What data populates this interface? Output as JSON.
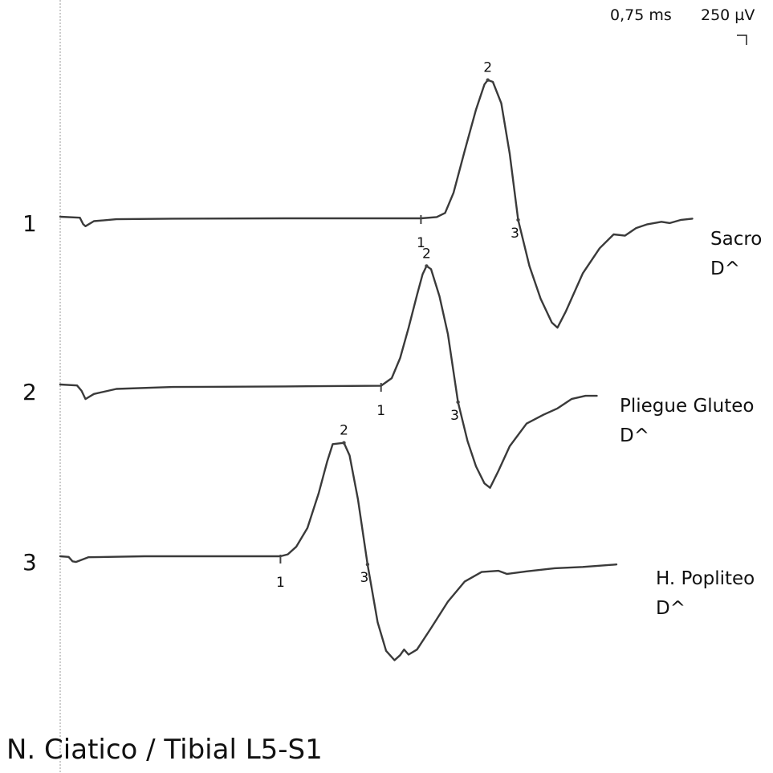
{
  "title": "N. Ciatico / Tibial L5-S1",
  "scale": {
    "time": "0,75 ms",
    "amplitude": "250 µV"
  },
  "chart_data": {
    "type": "line",
    "title": "N. Ciatico / Tibial L5-S1",
    "xlabel": "",
    "ylabel": "",
    "grid": false,
    "time_per_division_ms": 0.75,
    "amplitude_per_division_uV": 250,
    "series": [
      {
        "trace_number": "1",
        "site": "Sacro",
        "side": "D^",
        "markers": [
          {
            "label": "1",
            "x_ms": 6.42,
            "y_uV": 0
          },
          {
            "label": "2",
            "x_ms": 7.61,
            "y_uV": 2170
          },
          {
            "label": "3",
            "x_ms": 8.15,
            "y_uV": -50
          }
        ],
        "points": [
          [
            0,
            0
          ],
          [
            0.35,
            -15
          ],
          [
            0.41,
            -120
          ],
          [
            0.45,
            -150
          ],
          [
            0.6,
            -70
          ],
          [
            1.0,
            -40
          ],
          [
            2.0,
            -30
          ],
          [
            4.0,
            -25
          ],
          [
            6.42,
            -25
          ],
          [
            6.7,
            -5
          ],
          [
            6.85,
            60
          ],
          [
            7.0,
            380
          ],
          [
            7.2,
            1050
          ],
          [
            7.4,
            1700
          ],
          [
            7.55,
            2100
          ],
          [
            7.61,
            2170
          ],
          [
            7.7,
            2140
          ],
          [
            7.85,
            1800
          ],
          [
            8.0,
            1000
          ],
          [
            8.15,
            -50
          ],
          [
            8.35,
            -780
          ],
          [
            8.55,
            -1300
          ],
          [
            8.75,
            -1680
          ],
          [
            8.85,
            -1760
          ],
          [
            9.0,
            -1500
          ],
          [
            9.3,
            -900
          ],
          [
            9.6,
            -500
          ],
          [
            9.85,
            -280
          ],
          [
            10.05,
            -300
          ],
          [
            10.25,
            -180
          ],
          [
            10.45,
            -120
          ],
          [
            10.7,
            -80
          ],
          [
            10.85,
            -100
          ],
          [
            11.05,
            -50
          ],
          [
            11.25,
            -30
          ]
        ]
      },
      {
        "trace_number": "2",
        "site": "Pliegue Gluteo",
        "side": "D^",
        "markers": [
          {
            "label": "1",
            "x_ms": 5.71,
            "y_uV": 0
          },
          {
            "label": "2",
            "x_ms": 6.52,
            "y_uV": 1880
          },
          {
            "label": "3",
            "x_ms": 7.08,
            "y_uV": -280
          }
        ],
        "points": [
          [
            0,
            0
          ],
          [
            0.3,
            -15
          ],
          [
            0.38,
            -100
          ],
          [
            0.45,
            -230
          ],
          [
            0.6,
            -150
          ],
          [
            1.0,
            -70
          ],
          [
            2.0,
            -40
          ],
          [
            4.0,
            -30
          ],
          [
            5.71,
            -20
          ],
          [
            5.9,
            100
          ],
          [
            6.05,
            420
          ],
          [
            6.2,
            900
          ],
          [
            6.35,
            1420
          ],
          [
            6.45,
            1750
          ],
          [
            6.52,
            1880
          ],
          [
            6.6,
            1830
          ],
          [
            6.75,
            1400
          ],
          [
            6.9,
            800
          ],
          [
            7.08,
            -280
          ],
          [
            7.25,
            -900
          ],
          [
            7.4,
            -1300
          ],
          [
            7.55,
            -1570
          ],
          [
            7.65,
            -1640
          ],
          [
            7.8,
            -1370
          ],
          [
            8.0,
            -980
          ],
          [
            8.3,
            -620
          ],
          [
            8.6,
            -480
          ],
          [
            8.85,
            -380
          ],
          [
            9.1,
            -230
          ],
          [
            9.35,
            -180
          ],
          [
            9.55,
            -180
          ]
        ]
      },
      {
        "trace_number": "3",
        "site": "H. Popliteo",
        "side": "D^",
        "markers": [
          {
            "label": "1",
            "x_ms": 3.92,
            "y_uV": 0
          },
          {
            "label": "2",
            "x_ms": 5.05,
            "y_uV": 1800
          },
          {
            "label": "3",
            "x_ms": 5.47,
            "y_uV": -130
          }
        ],
        "points": [
          [
            0,
            0
          ],
          [
            0.15,
            -10
          ],
          [
            0.22,
            -80
          ],
          [
            0.28,
            -90
          ],
          [
            0.5,
            -15
          ],
          [
            1.5,
            0
          ],
          [
            3.0,
            0
          ],
          [
            3.92,
            0
          ],
          [
            4.05,
            30
          ],
          [
            4.2,
            150
          ],
          [
            4.4,
            450
          ],
          [
            4.6,
            1000
          ],
          [
            4.75,
            1500
          ],
          [
            4.85,
            1780
          ],
          [
            5.05,
            1800
          ],
          [
            5.15,
            1600
          ],
          [
            5.3,
            900
          ],
          [
            5.47,
            -130
          ],
          [
            5.65,
            -1050
          ],
          [
            5.8,
            -1500
          ],
          [
            5.95,
            -1650
          ],
          [
            6.05,
            -1570
          ],
          [
            6.12,
            -1480
          ],
          [
            6.2,
            -1560
          ],
          [
            6.35,
            -1480
          ],
          [
            6.6,
            -1140
          ],
          [
            6.9,
            -720
          ],
          [
            7.2,
            -400
          ],
          [
            7.5,
            -250
          ],
          [
            7.8,
            -230
          ],
          [
            7.95,
            -280
          ],
          [
            8.3,
            -240
          ],
          [
            8.8,
            -190
          ],
          [
            9.3,
            -170
          ],
          [
            9.9,
            -130
          ]
        ]
      }
    ]
  }
}
